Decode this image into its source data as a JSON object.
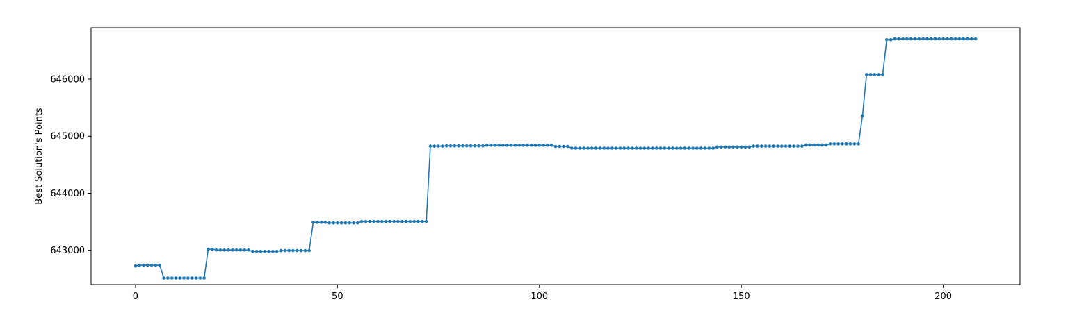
{
  "chart_data": {
    "type": "line",
    "title": "",
    "xlabel": "",
    "ylabel": "Best Solution's Points",
    "xlim": [
      -11,
      219
    ],
    "ylim": [
      642400,
      646900
    ],
    "xticks": [
      0,
      50,
      100,
      150,
      200
    ],
    "yticks": [
      643000,
      644000,
      645000,
      646000
    ],
    "grid": false,
    "legend": "none",
    "colors": {
      "series": "#1f77b4"
    },
    "segments": [
      {
        "x": [
          0
        ],
        "y": 642725
      },
      {
        "x": [
          1,
          6
        ],
        "y": 642740
      },
      {
        "x": [
          7,
          17
        ],
        "y": 642515
      },
      {
        "x": [
          18,
          19
        ],
        "y": 643020
      },
      {
        "x": [
          20,
          28
        ],
        "y": 643005
      },
      {
        "x": [
          29,
          35
        ],
        "y": 642980
      },
      {
        "x": [
          36,
          43
        ],
        "y": 642995
      },
      {
        "x": [
          44,
          47
        ],
        "y": 643490
      },
      {
        "x": [
          48,
          55
        ],
        "y": 643480
      },
      {
        "x": [
          56,
          72
        ],
        "y": 643505
      },
      {
        "x": [
          73,
          76
        ],
        "y": 644825
      },
      {
        "x": [
          77,
          86
        ],
        "y": 644830
      },
      {
        "x": [
          87,
          103
        ],
        "y": 644840
      },
      {
        "x": [
          104,
          107
        ],
        "y": 644820
      },
      {
        "x": [
          108,
          143
        ],
        "y": 644790
      },
      {
        "x": [
          144,
          152
        ],
        "y": 644810
      },
      {
        "x": [
          153,
          165
        ],
        "y": 644825
      },
      {
        "x": [
          166,
          171
        ],
        "y": 644845
      },
      {
        "x": [
          172,
          179
        ],
        "y": 644865
      },
      {
        "x": [
          180
        ],
        "y": 645360
      },
      {
        "x": [
          181,
          185
        ],
        "y": 646080
      },
      {
        "x": [
          186,
          187
        ],
        "y": 646690
      },
      {
        "x": [
          188,
          208
        ],
        "y": 646705
      }
    ]
  }
}
